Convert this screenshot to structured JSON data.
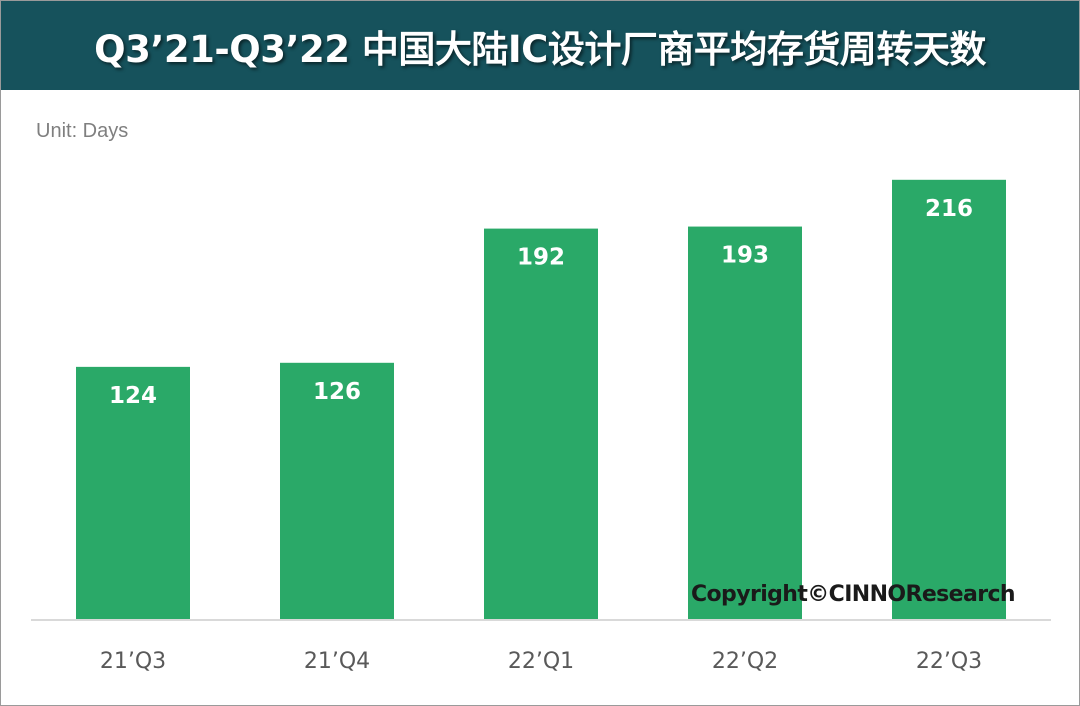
{
  "title": "Q3’21-Q3’22 中国大陆IC设计厂商平均存货周转天数",
  "unit_label": "Unit: Days",
  "copyright": "Copyright©CINNOResearch",
  "colors": {
    "title_bar": "#16525c",
    "bar": "#2aa968",
    "axis_text": "#595959",
    "data_label": "#ffffff"
  },
  "chart_data": {
    "type": "bar",
    "categories": [
      "21’Q3",
      "21’Q4",
      "22’Q1",
      "22’Q2",
      "22’Q3"
    ],
    "values": [
      124,
      126,
      192,
      193,
      216
    ],
    "ylim": [
      0,
      240
    ],
    "grid": false,
    "legend": "none"
  }
}
